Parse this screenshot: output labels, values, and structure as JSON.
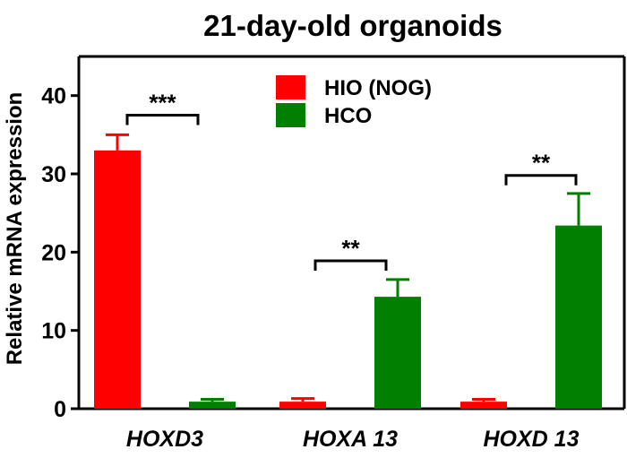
{
  "chart_data": {
    "type": "bar",
    "title": "21-day-old organoids",
    "xlabel": "",
    "ylabel": "Relative mRNA expression",
    "categories": [
      "HOXD3",
      "HOXA 13",
      "HOXD 13"
    ],
    "series": [
      {
        "name": "HIO (NOG)",
        "color": "#ff0000",
        "values": [
          33,
          0.9,
          0.9
        ],
        "errors": [
          2.0,
          0.4,
          0.3
        ]
      },
      {
        "name": "HCO",
        "color": "#007f00",
        "values": [
          0.9,
          14.3,
          23.4
        ],
        "errors": [
          0.3,
          2.2,
          4.1
        ]
      }
    ],
    "ylim": [
      0,
      45
    ],
    "yticks": [
      0,
      10,
      20,
      30,
      40
    ],
    "legend": "top-center",
    "grid": false,
    "significance": [
      "***",
      "**",
      "**"
    ]
  }
}
